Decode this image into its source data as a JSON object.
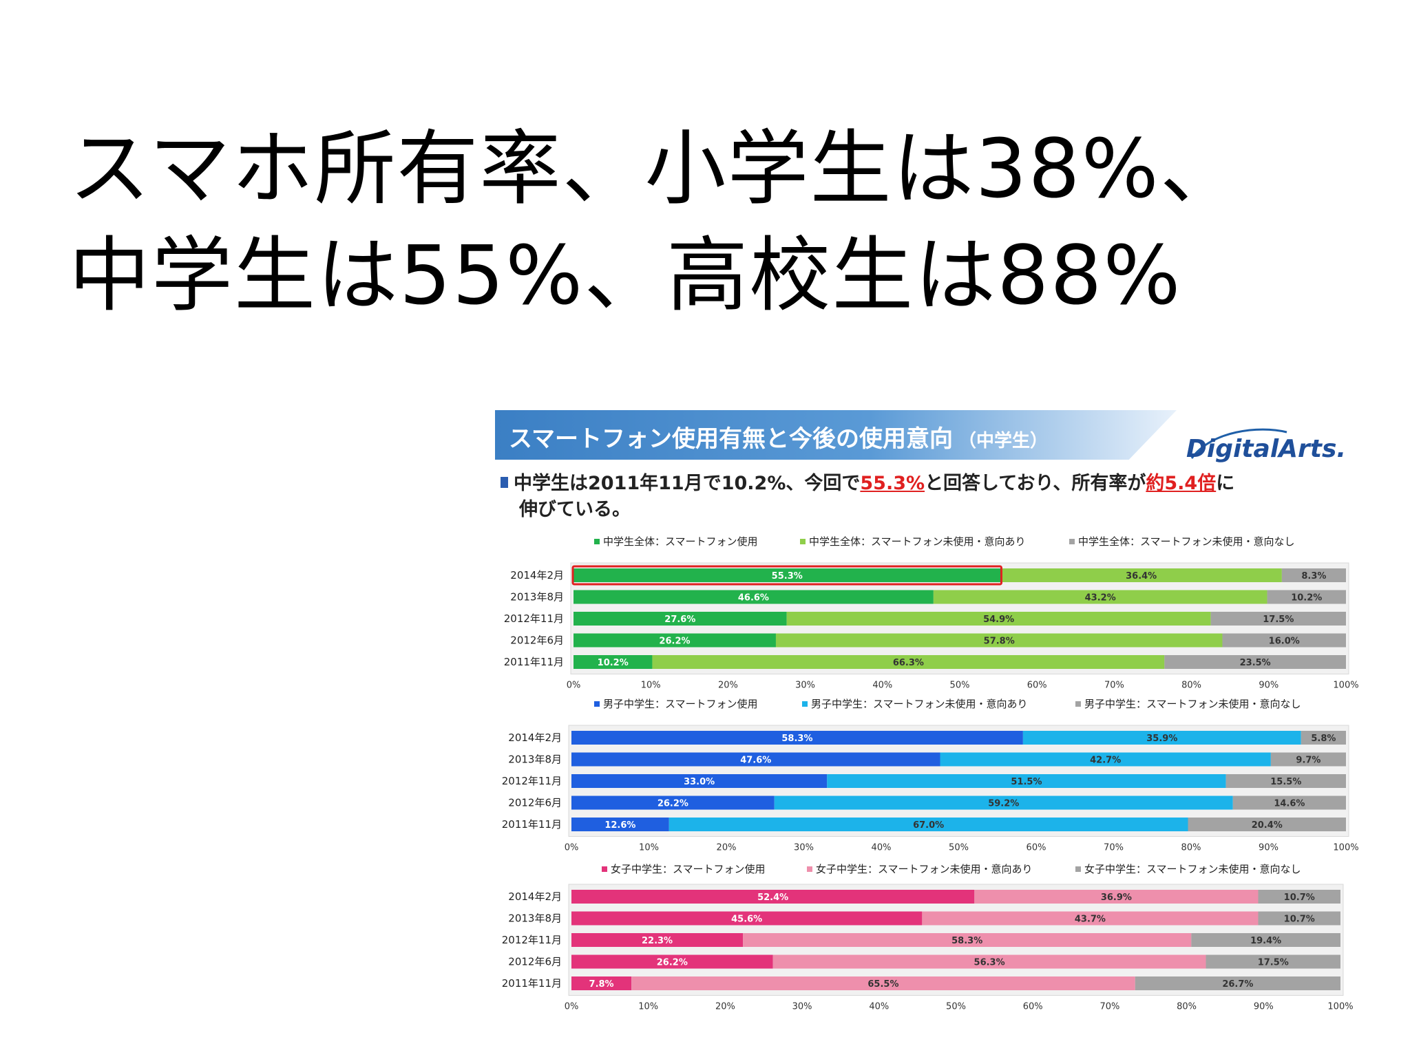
{
  "headline": {
    "line1": "スマホ所有率、小学生は38%、",
    "line2": "中学生は55%、高校生は88%"
  },
  "figure": {
    "title": "スマートフォン使用有無と今後の使用意向",
    "title_sub": "（中学生）",
    "logo_text": "DigitalArts.",
    "bullet_pre": "中学生は2011年11月で10.2%、今回で",
    "bullet_hl1": "55.3%",
    "bullet_mid": "と回答しており、所有率が",
    "bullet_hl2": "約5.4倍",
    "bullet_post": "に",
    "bullet_line2": "伸びている。"
  },
  "colors": {
    "green_dark": "#22b24c",
    "green_light": "#8fce4a",
    "blue_dark": "#1f5fe0",
    "blue_light": "#1cb3ea",
    "pink_dark": "#e3337a",
    "pink_light": "#ee8fac",
    "gray": "#a3a3a3",
    "highlight_box": "#e02020"
  },
  "chart_data": [
    {
      "type": "bar",
      "orientation": "horizontal",
      "stacked": true,
      "categories": [
        "2014年2月",
        "2013年8月",
        "2012年11月",
        "2012年6月",
        "2011年11月"
      ],
      "xticks": [
        "0%",
        "10%",
        "20%",
        "30%",
        "40%",
        "50%",
        "60%",
        "70%",
        "80%",
        "90%",
        "100%"
      ],
      "xlim": [
        0,
        100
      ],
      "legend_position": "top",
      "series": [
        {
          "name": "中学生全体：スマートフォン使用",
          "values": [
            55.3,
            46.6,
            27.6,
            26.2,
            10.2
          ],
          "labels": [
            "55.3%",
            "46.6%",
            "27.6%",
            "26.2%",
            "10.2%"
          ],
          "color": "#22b24c"
        },
        {
          "name": "中学生全体：スマートフォン未使用・意向あり",
          "values": [
            36.4,
            43.2,
            54.9,
            57.8,
            66.3
          ],
          "labels": [
            "36.4%",
            "43.2%",
            "54.9%",
            "57.8%",
            "66.3%"
          ],
          "color": "#8fce4a"
        },
        {
          "name": "中学生全体：スマートフォン未使用・意向なし",
          "values": [
            8.3,
            10.2,
            17.5,
            16.0,
            23.5
          ],
          "labels": [
            "8.3%",
            "10.2%",
            "17.5%",
            "16.0%",
            "23.5%"
          ],
          "color": "#a3a3a3"
        }
      ],
      "highlight": {
        "category": "2014年2月",
        "series": 0
      }
    },
    {
      "type": "bar",
      "orientation": "horizontal",
      "stacked": true,
      "categories": [
        "2014年2月",
        "2013年8月",
        "2012年11月",
        "2012年6月",
        "2011年11月"
      ],
      "xticks": [
        "0%",
        "10%",
        "20%",
        "30%",
        "40%",
        "50%",
        "60%",
        "70%",
        "80%",
        "90%",
        "100%"
      ],
      "xlim": [
        0,
        100
      ],
      "legend_position": "top",
      "series": [
        {
          "name": "男子中学生：スマートフォン使用",
          "values": [
            58.3,
            47.6,
            33.0,
            26.2,
            12.6
          ],
          "labels": [
            "58.3%",
            "47.6%",
            "33.0%",
            "26.2%",
            "12.6%"
          ],
          "color": "#1f5fe0"
        },
        {
          "name": "男子中学生：スマートフォン未使用・意向あり",
          "values": [
            35.9,
            42.7,
            51.5,
            59.2,
            67.0
          ],
          "labels": [
            "35.9%",
            "42.7%",
            "51.5%",
            "59.2%",
            "67.0%"
          ],
          "color": "#1cb3ea"
        },
        {
          "name": "男子中学生：スマートフォン未使用・意向なし",
          "values": [
            5.8,
            9.7,
            15.5,
            14.6,
            20.4
          ],
          "labels": [
            "5.8%",
            "9.7%",
            "15.5%",
            "14.6%",
            "20.4%"
          ],
          "color": "#a3a3a3"
        }
      ]
    },
    {
      "type": "bar",
      "orientation": "horizontal",
      "stacked": true,
      "categories": [
        "2014年2月",
        "2013年8月",
        "2012年11月",
        "2012年6月",
        "2011年11月"
      ],
      "xticks": [
        "0%",
        "10%",
        "20%",
        "30%",
        "40%",
        "50%",
        "60%",
        "70%",
        "80%",
        "90%",
        "100%"
      ],
      "xlim": [
        0,
        100
      ],
      "legend_position": "top",
      "series": [
        {
          "name": "女子中学生：スマートフォン使用",
          "values": [
            52.4,
            45.6,
            22.3,
            26.2,
            7.8
          ],
          "labels": [
            "52.4%",
            "45.6%",
            "22.3%",
            "26.2%",
            "7.8%"
          ],
          "color": "#e3337a"
        },
        {
          "name": "女子中学生：スマートフォン未使用・意向あり",
          "values": [
            36.9,
            43.7,
            58.3,
            56.3,
            65.5
          ],
          "labels": [
            "36.9%",
            "43.7%",
            "58.3%",
            "56.3%",
            "65.5%"
          ],
          "color": "#ee8fac"
        },
        {
          "name": "女子中学生：スマートフォン未使用・意向なし",
          "values": [
            10.7,
            10.7,
            19.4,
            17.5,
            26.7
          ],
          "labels": [
            "10.7%",
            "10.7%",
            "19.4%",
            "17.5%",
            "26.7%"
          ],
          "color": "#a3a3a3"
        }
      ]
    }
  ]
}
